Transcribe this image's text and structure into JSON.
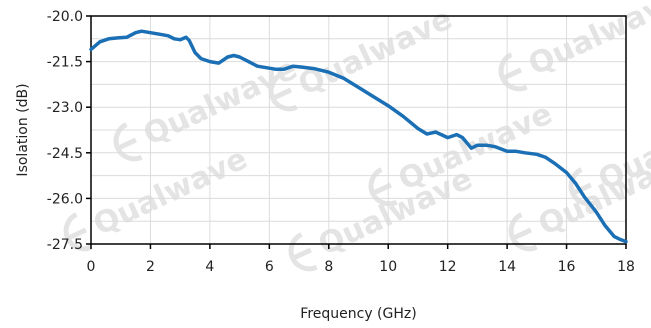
{
  "chart_data": {
    "type": "line",
    "title": "",
    "xlabel": "Frequency (GHz)",
    "ylabel": "Isolation (dB)",
    "xlim": [
      0,
      18
    ],
    "ylim": [
      -27.5,
      -20.0
    ],
    "xticks": [
      0,
      2,
      4,
      6,
      8,
      10,
      12,
      14,
      16,
      18
    ],
    "xtick_labels": [
      "0",
      "2",
      "4",
      "6",
      "8",
      "10",
      "12",
      "14",
      "16",
      "18"
    ],
    "yticks": [
      -20.0,
      -21.5,
      -23.0,
      -24.5,
      -26.0,
      -27.5
    ],
    "ytick_labels": [
      "-20.0",
      "-21.5",
      "-23.0",
      "-24.5",
      "-26.0",
      "-27.5"
    ],
    "grid": true,
    "series": [
      {
        "color": "#1a6fb5",
        "x": [
          0.0,
          0.3,
          0.6,
          0.9,
          1.2,
          1.5,
          1.7,
          2.0,
          2.3,
          2.6,
          2.8,
          3.0,
          3.2,
          3.3,
          3.5,
          3.7,
          4.0,
          4.3,
          4.6,
          4.8,
          5.0,
          5.3,
          5.6,
          5.9,
          6.2,
          6.5,
          6.8,
          7.1,
          7.5,
          8.0,
          8.5,
          9.0,
          9.5,
          10.0,
          10.5,
          11.0,
          11.3,
          11.6,
          12.0,
          12.3,
          12.5,
          12.8,
          13.0,
          13.3,
          13.6,
          14.0,
          14.3,
          14.6,
          15.0,
          15.3,
          15.6,
          16.0,
          16.3,
          16.6,
          17.0,
          17.3,
          17.6,
          17.8,
          18.0
        ],
        "y": [
          -21.1,
          -20.85,
          -20.75,
          -20.72,
          -20.7,
          -20.55,
          -20.5,
          -20.55,
          -20.6,
          -20.65,
          -20.75,
          -20.78,
          -20.7,
          -20.8,
          -21.2,
          -21.4,
          -21.5,
          -21.55,
          -21.35,
          -21.3,
          -21.35,
          -21.5,
          -21.65,
          -21.7,
          -21.75,
          -21.75,
          -21.65,
          -21.68,
          -21.73,
          -21.85,
          -22.05,
          -22.35,
          -22.65,
          -22.95,
          -23.3,
          -23.7,
          -23.88,
          -23.82,
          -24.0,
          -23.9,
          -24.0,
          -24.35,
          -24.25,
          -24.25,
          -24.3,
          -24.45,
          -24.45,
          -24.5,
          -24.55,
          -24.65,
          -24.85,
          -25.15,
          -25.5,
          -25.95,
          -26.45,
          -26.9,
          -27.25,
          -27.35,
          -27.42
        ]
      }
    ],
    "watermark": "Qualwave"
  }
}
